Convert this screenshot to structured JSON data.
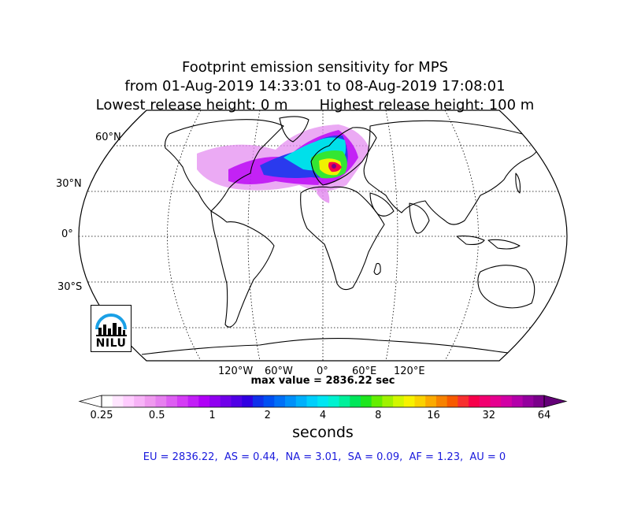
{
  "title": {
    "line1": "Footprint emission sensitivity for MPS",
    "line2": "from 01-Aug-2019 14:33:01 to 08-Aug-2019 17:08:01",
    "line3": "Lowest release height: 0 m       Highest release height: 100 m"
  },
  "map": {
    "projection": "robinson",
    "lat_labels": [
      "60°N",
      "30°N",
      "0°",
      "30°S"
    ],
    "lon_labels": [
      "120°W",
      "60°W",
      "0°",
      "60°E",
      "120°E"
    ],
    "gridlines": "dotted"
  },
  "max_value": "max value = 2836.22 sec",
  "colorbar": {
    "ticks": [
      "0.25",
      "0.5",
      "1",
      "2",
      "4",
      "8",
      "16",
      "32",
      "64"
    ],
    "unit_label": "seconds",
    "extend": "both",
    "colors": [
      "#ffffff",
      "#ffe6ff",
      "#ffccff",
      "#f7b3f7",
      "#ef99ef",
      "#e67fef",
      "#dd5ef2",
      "#d43cf5",
      "#c21ff7",
      "#b000f7",
      "#9000f0",
      "#7000ea",
      "#5000e6",
      "#3000e2",
      "#1030ea",
      "#0050f2",
      "#0070f7",
      "#0090fa",
      "#00b0fc",
      "#00cffc",
      "#00e6f2",
      "#00f2d0",
      "#00f09a",
      "#00e65a",
      "#1ee61e",
      "#64ee00",
      "#a0f200",
      "#d2f700",
      "#f7f200",
      "#fad200",
      "#fbaa00",
      "#f78200",
      "#f75a00",
      "#f73030",
      "#f7004a",
      "#f20070",
      "#e6008f",
      "#d200a5",
      "#b400aa",
      "#94009e",
      "#7a008a",
      "#640078"
    ]
  },
  "summary": "EU = 2836.22,  AS = 0.44,  NA = 3.01,  SA = 0.09,  AF = 1.23,  AU = 0",
  "logo": {
    "text": "NILU"
  }
}
